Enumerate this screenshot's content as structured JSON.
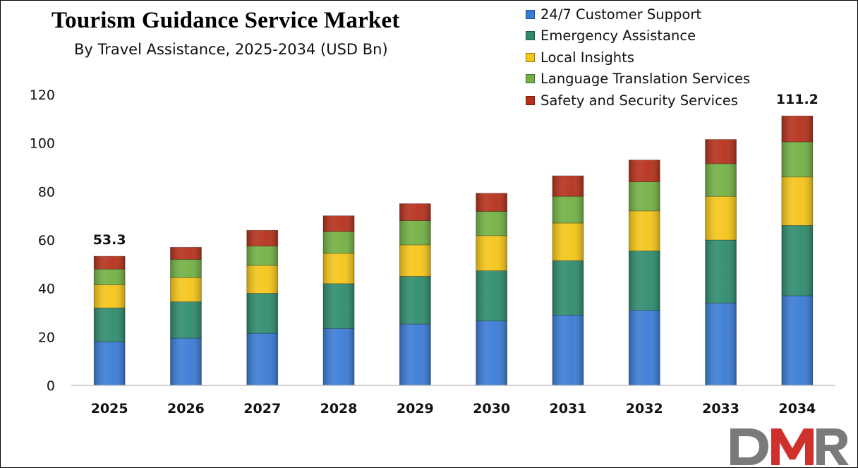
{
  "chart_data": {
    "type": "bar",
    "stacked": true,
    "title": "Tourism Guidance Service Market",
    "subtitle": "By Travel Assistance, 2025-2034 (USD Bn)",
    "xlabel": "",
    "ylabel": "",
    "ylim": [
      0,
      120
    ],
    "yticks": [
      "0",
      "20",
      "40",
      "60",
      "80",
      "100",
      "120"
    ],
    "grid": false,
    "legend_position": "top-right",
    "categories": [
      "2025",
      "2026",
      "2027",
      "2028",
      "2029",
      "2030",
      "2031",
      "2032",
      "2033",
      "2034"
    ],
    "series": [
      {
        "name": "24/7 Customer Support",
        "color": "#3a7bd5",
        "values": [
          18.0,
          19.5,
          21.5,
          23.5,
          25.3,
          26.6,
          29.0,
          31.0,
          34.0,
          37.0
        ]
      },
      {
        "name": "Emergency Assistance",
        "color": "#2e8b6e",
        "values": [
          14.0,
          15.0,
          16.5,
          18.5,
          19.7,
          20.7,
          22.5,
          24.5,
          26.0,
          29.0
        ]
      },
      {
        "name": "Local Insights",
        "color": "#f5c518",
        "values": [
          9.5,
          10.0,
          11.5,
          12.5,
          13.0,
          14.5,
          15.5,
          16.5,
          18.0,
          20.0
        ]
      },
      {
        "name": "Language Translation Services",
        "color": "#72b043",
        "values": [
          6.5,
          7.5,
          8.0,
          9.0,
          10.0,
          10.0,
          11.0,
          12.0,
          13.5,
          14.5
        ]
      },
      {
        "name": "Safety and Security Services",
        "color": "#b5301b",
        "values": [
          5.3,
          5.0,
          6.5,
          6.5,
          7.0,
          7.5,
          8.5,
          9.0,
          10.0,
          10.7
        ]
      }
    ],
    "data_labels": [
      {
        "category": "2025",
        "text": "53.3"
      },
      {
        "category": "2034",
        "text": "111.2"
      }
    ]
  },
  "branding": {
    "logo_text": "DMR",
    "logo_colors": [
      "#7a7a7a",
      "#d0302b",
      "#7a7a7a"
    ]
  }
}
